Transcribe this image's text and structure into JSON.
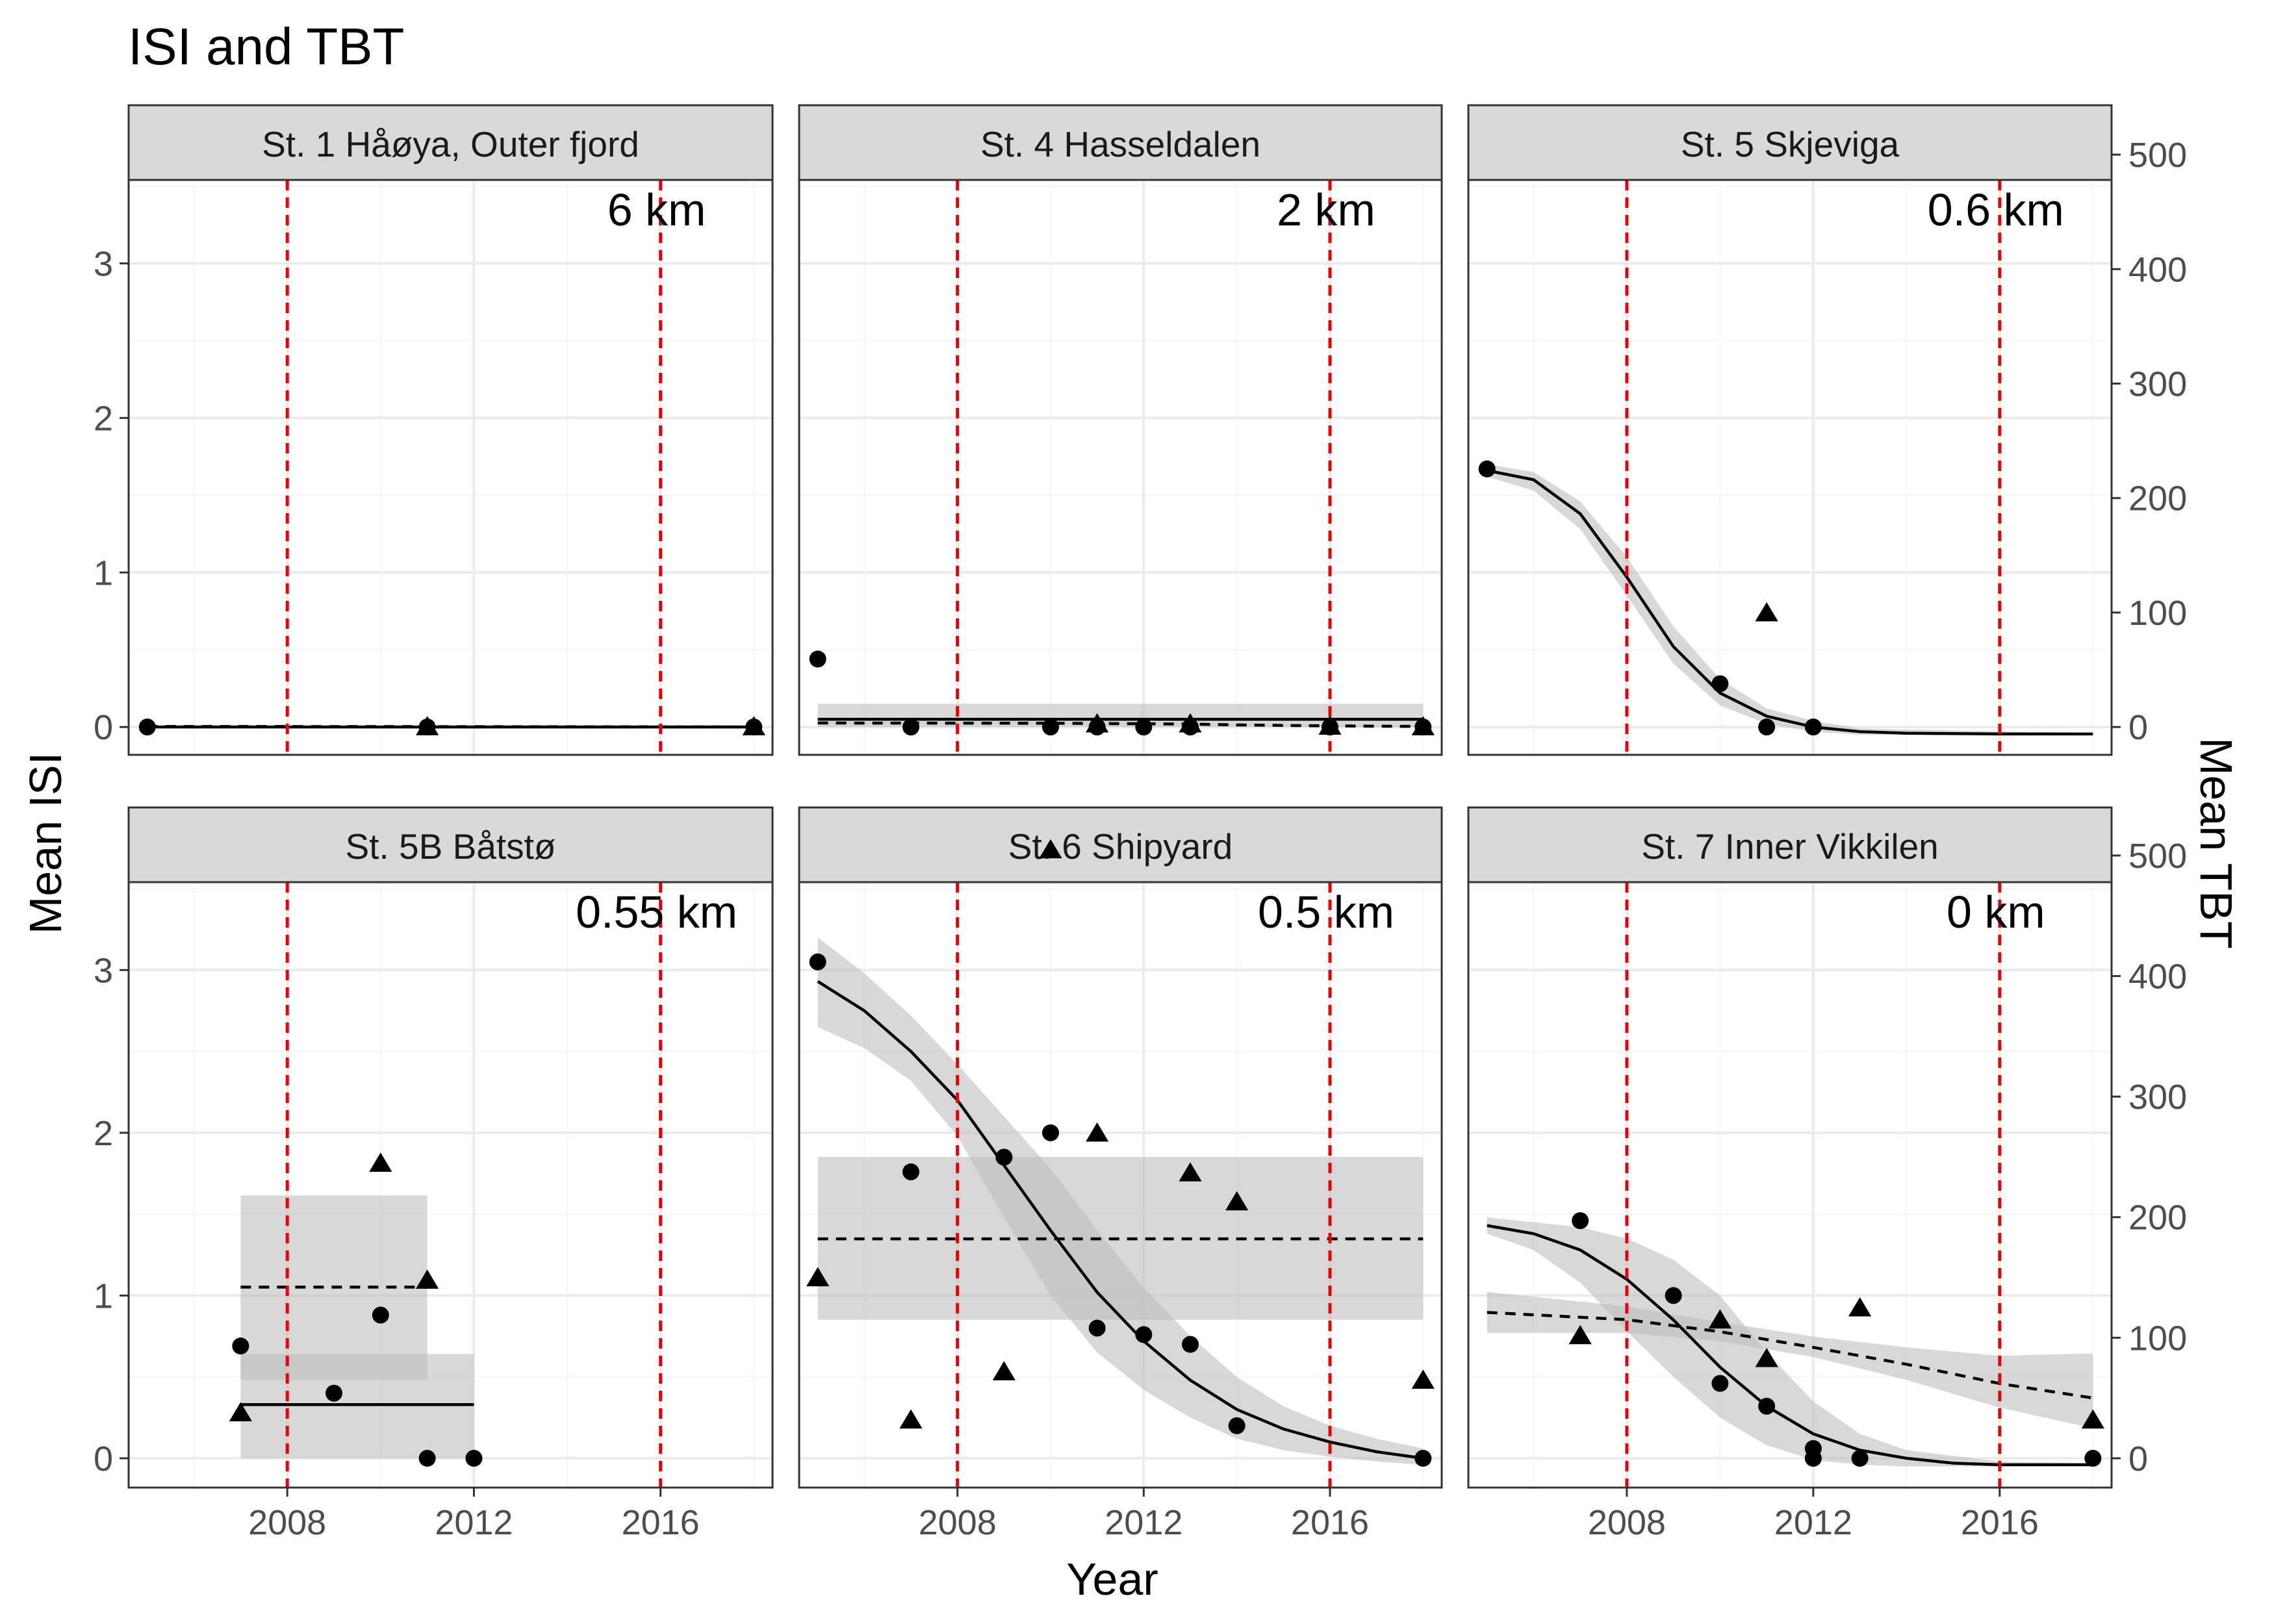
{
  "chart_data": {
    "type": "scatter",
    "title": "ISI and TBT",
    "xlabel": "Year",
    "ylabel_left": "Mean ISI",
    "ylabel_right": "Mean TBT",
    "xlim": [
      2004.6,
      2018.4
    ],
    "ylim_left": [
      -0.18,
      3.54
    ],
    "ylim_right": [
      -24.3,
      477.9
    ],
    "x_ticks": [
      2008,
      2012,
      2016
    ],
    "y_ticks_left": [
      0,
      1,
      2,
      3
    ],
    "y_ticks_right": [
      0,
      100,
      200,
      300,
      400,
      500
    ],
    "reference_lines_x": [
      2008,
      2016
    ],
    "grid": true,
    "legend": "none",
    "colors": {
      "panel_border": "#333333",
      "strip_fill": "#d9d9d9",
      "grid_major": "#ebebeb",
      "grid_minor": "#f5f5f5",
      "ref_line": "#ee0000",
      "ribbon": "#bebebe",
      "points": "#000000"
    },
    "panels": [
      {
        "name": "St. 1 Håøya, Outer fjord",
        "distance": "6 km",
        "isi_points": [
          [
            2005,
            0.0
          ],
          [
            2011,
            0.0
          ],
          [
            2018,
            0.0
          ]
        ],
        "tbt_points": [
          [
            2011,
            0.5
          ],
          [
            2018,
            0.5
          ]
        ],
        "isi_fit": [
          [
            2005,
            0.0
          ],
          [
            2018,
            0.0
          ]
        ],
        "isi_band": [],
        "tbt_fit": [
          [
            2005,
            0.5
          ],
          [
            2011,
            0.35
          ],
          [
            2018,
            0.05
          ]
        ],
        "tbt_band": []
      },
      {
        "name": "St. 4 Hasseldalen",
        "distance": "2 km",
        "isi_points": [
          [
            2005,
            0.44
          ],
          [
            2007,
            0.0
          ],
          [
            2010,
            0.0
          ],
          [
            2011,
            0.0
          ],
          [
            2012,
            0.0
          ],
          [
            2013,
            0.0
          ],
          [
            2016,
            0.0
          ],
          [
            2018,
            0.0
          ]
        ],
        "tbt_points": [
          [
            2011,
            3.0
          ],
          [
            2013,
            3.0
          ],
          [
            2016,
            1.0
          ],
          [
            2018,
            0.5
          ]
        ],
        "isi_fit": [
          [
            2005,
            0.05
          ],
          [
            2018,
            0.05
          ]
        ],
        "isi_band": [
          [
            2005,
            0.0,
            0.15
          ],
          [
            2018,
            0.0,
            0.15
          ]
        ],
        "tbt_fit": [
          [
            2005,
            3.5
          ],
          [
            2010,
            3.3
          ],
          [
            2013,
            2.6
          ],
          [
            2014,
            1.8
          ],
          [
            2016,
            1.0
          ],
          [
            2018,
            0.5
          ]
        ],
        "tbt_band": [
          [
            2005,
            3.0,
            4.0
          ],
          [
            2010,
            3.0,
            3.6
          ],
          [
            2013,
            2.3,
            2.9
          ],
          [
            2016,
            0.6,
            1.4
          ],
          [
            2018,
            0.1,
            0.9
          ]
        ]
      },
      {
        "name": "St. 5 Skjeviga",
        "distance": "0.6 km",
        "isi_points": [
          [
            2005,
            1.67
          ],
          [
            2010,
            0.28
          ],
          [
            2011,
            0.0
          ],
          [
            2012,
            0.0
          ]
        ],
        "tbt_points": [
          [
            2011,
            100
          ]
        ],
        "isi_fit": [
          [
            2005,
            1.66
          ],
          [
            2006,
            1.6
          ],
          [
            2007,
            1.38
          ],
          [
            2008,
            0.97
          ],
          [
            2009,
            0.52
          ],
          [
            2010,
            0.22
          ],
          [
            2011,
            0.07
          ],
          [
            2012,
            0.0
          ],
          [
            2013,
            -0.03
          ],
          [
            2014,
            -0.04
          ],
          [
            2016,
            -0.045
          ],
          [
            2018,
            -0.045
          ]
        ],
        "isi_band": [
          [
            2005,
            1.62,
            1.7
          ],
          [
            2006,
            1.53,
            1.65
          ],
          [
            2007,
            1.28,
            1.46
          ],
          [
            2008,
            0.85,
            1.1
          ],
          [
            2009,
            0.41,
            0.65
          ],
          [
            2010,
            0.14,
            0.31
          ],
          [
            2011,
            0.02,
            0.12
          ],
          [
            2012,
            -0.03,
            0.04
          ],
          [
            2013,
            -0.05,
            -0.01
          ],
          [
            2018,
            -0.05,
            -0.04
          ]
        ],
        "tbt_fit": [],
        "tbt_band": []
      },
      {
        "name": "St. 5B Båtstø",
        "distance": "0.55 km",
        "isi_points": [
          [
            2007,
            0.69
          ],
          [
            2009,
            0.4
          ],
          [
            2010,
            0.88
          ],
          [
            2011,
            0.0
          ],
          [
            2012,
            0.0
          ]
        ],
        "tbt_points": [
          [
            2007,
            38
          ],
          [
            2010,
            245
          ],
          [
            2011,
            148
          ]
        ],
        "isi_fit": [
          [
            2007,
            0.33
          ],
          [
            2012,
            0.33
          ]
        ],
        "isi_band": [
          [
            2007,
            0.0,
            0.64
          ],
          [
            2012,
            0.0,
            0.64
          ]
        ],
        "tbt_fit": [
          [
            2007,
            142
          ],
          [
            2011,
            142
          ]
        ],
        "tbt_band": [
          [
            2007,
            65,
            218
          ],
          [
            2011,
            65,
            218
          ]
        ]
      },
      {
        "name": "St. 6 Shipyard",
        "distance": "0.5 km",
        "isi_points": [
          [
            2005,
            3.05
          ],
          [
            2007,
            1.76
          ],
          [
            2009,
            1.85
          ],
          [
            2010,
            2.0
          ],
          [
            2011,
            0.8
          ],
          [
            2012,
            0.76
          ],
          [
            2013,
            0.7
          ],
          [
            2014,
            0.2
          ],
          [
            2018,
            0.0
          ]
        ],
        "tbt_points": [
          [
            2005,
            150
          ],
          [
            2007,
            32
          ],
          [
            2009,
            72
          ],
          [
            2010,
            505
          ],
          [
            2011,
            270
          ],
          [
            2013,
            237
          ],
          [
            2014,
            213
          ],
          [
            2018,
            65
          ]
        ],
        "isi_fit": [
          [
            2005,
            2.93
          ],
          [
            2006,
            2.75
          ],
          [
            2007,
            2.5
          ],
          [
            2008,
            2.2
          ],
          [
            2009,
            1.8
          ],
          [
            2010,
            1.4
          ],
          [
            2011,
            1.02
          ],
          [
            2012,
            0.72
          ],
          [
            2013,
            0.48
          ],
          [
            2014,
            0.3
          ],
          [
            2015,
            0.18
          ],
          [
            2016,
            0.1
          ],
          [
            2017,
            0.04
          ],
          [
            2018,
            0.0
          ]
        ],
        "isi_band": [
          [
            2005,
            2.65,
            3.2
          ],
          [
            2006,
            2.52,
            2.98
          ],
          [
            2007,
            2.32,
            2.72
          ],
          [
            2008,
            1.98,
            2.42
          ],
          [
            2009,
            1.48,
            2.1
          ],
          [
            2010,
            1.0,
            1.78
          ],
          [
            2011,
            0.65,
            1.4
          ],
          [
            2012,
            0.42,
            1.05
          ],
          [
            2013,
            0.25,
            0.75
          ],
          [
            2014,
            0.12,
            0.5
          ],
          [
            2015,
            0.05,
            0.32
          ],
          [
            2016,
            0.01,
            0.2
          ],
          [
            2017,
            -0.02,
            0.12
          ],
          [
            2018,
            -0.04,
            0.06
          ]
        ],
        "tbt_fit": [
          [
            2005,
            182
          ],
          [
            2018,
            182
          ]
        ],
        "tbt_band": [
          [
            2005,
            115,
            250
          ],
          [
            2018,
            115,
            250
          ]
        ]
      },
      {
        "name": "St. 7 Inner Vikkilen",
        "distance": "0 km",
        "isi_points": [
          [
            2007,
            1.46
          ],
          [
            2009,
            1.0
          ],
          [
            2010,
            0.46
          ],
          [
            2011,
            0.32
          ],
          [
            2012,
            0.06
          ],
          [
            2012,
            0.0
          ],
          [
            2013,
            0.0
          ],
          [
            2018,
            0.0
          ]
        ],
        "tbt_points": [
          [
            2007,
            102
          ],
          [
            2010,
            115
          ],
          [
            2011,
            83
          ],
          [
            2013,
            125
          ],
          [
            2018,
            32
          ]
        ],
        "isi_fit": [
          [
            2005,
            1.43
          ],
          [
            2006,
            1.38
          ],
          [
            2007,
            1.28
          ],
          [
            2008,
            1.1
          ],
          [
            2009,
            0.85
          ],
          [
            2010,
            0.56
          ],
          [
            2011,
            0.32
          ],
          [
            2012,
            0.15
          ],
          [
            2013,
            0.05
          ],
          [
            2014,
            0.0
          ],
          [
            2015,
            -0.03
          ],
          [
            2016,
            -0.04
          ],
          [
            2018,
            -0.04
          ]
        ],
        "isi_band": [
          [
            2005,
            1.38,
            1.48
          ],
          [
            2006,
            1.28,
            1.45
          ],
          [
            2007,
            1.08,
            1.42
          ],
          [
            2008,
            0.78,
            1.35
          ],
          [
            2009,
            0.5,
            1.22
          ],
          [
            2010,
            0.25,
            1.0
          ],
          [
            2011,
            0.08,
            0.65
          ],
          [
            2012,
            -0.01,
            0.35
          ],
          [
            2013,
            -0.04,
            0.15
          ],
          [
            2014,
            -0.05,
            0.05
          ],
          [
            2016,
            -0.05,
            -0.02
          ],
          [
            2018,
            -0.05,
            -0.03
          ]
        ],
        "tbt_fit": [
          [
            2005,
            121
          ],
          [
            2008,
            115
          ],
          [
            2010,
            105
          ],
          [
            2012,
            92
          ],
          [
            2014,
            78
          ],
          [
            2016,
            62
          ],
          [
            2018,
            50
          ]
        ],
        "tbt_band": [
          [
            2005,
            104,
            138
          ],
          [
            2008,
            104,
            126
          ],
          [
            2010,
            97,
            113
          ],
          [
            2012,
            84,
            101
          ],
          [
            2014,
            65,
            92
          ],
          [
            2016,
            42,
            85
          ],
          [
            2018,
            25,
            87
          ]
        ]
      }
    ]
  }
}
